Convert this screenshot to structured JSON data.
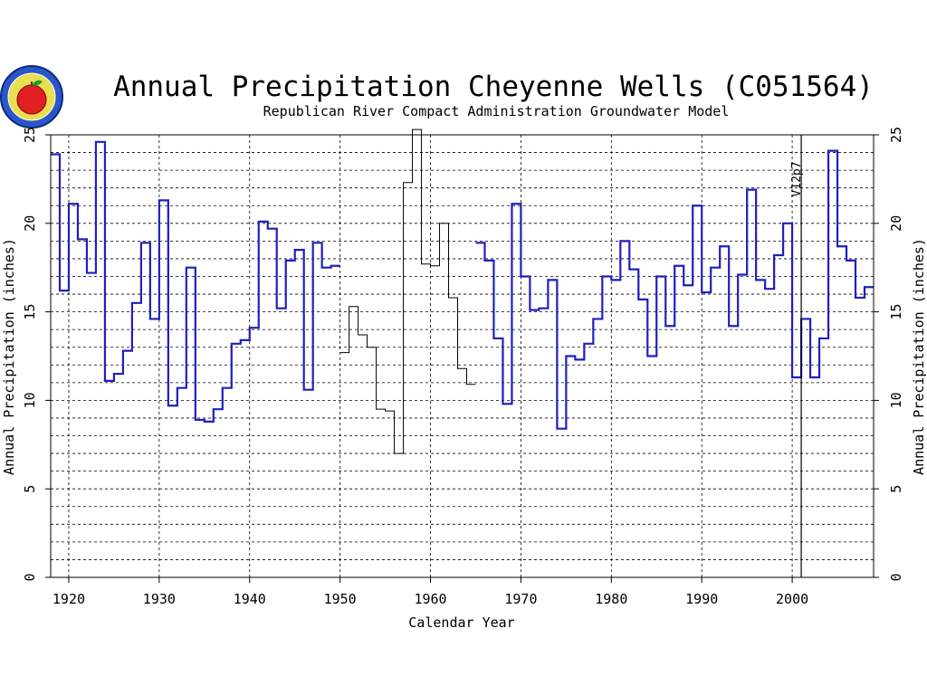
{
  "chart_data": {
    "type": "line",
    "step": true,
    "title": "Annual Precipitation Cheyenne Wells (C051564)",
    "subtitle": "Republican River Compact Administration Groundwater Model",
    "xlabel": "Calendar Year",
    "ylabel": "Annual Precipitation (inches)",
    "xlim": [
      1918,
      2009
    ],
    "ylim": [
      0,
      25
    ],
    "xticks": [
      1920,
      1930,
      1940,
      1950,
      1960,
      1970,
      1980,
      1990,
      2000
    ],
    "xtick_labels": [
      "1920",
      "1930",
      "1940",
      "1950",
      "1960",
      "1970",
      "1980",
      "1990",
      "2000"
    ],
    "yticks": [
      0,
      5,
      10,
      15,
      20,
      25
    ],
    "ytick_labels": [
      "0",
      "5",
      "10",
      "15",
      "20",
      "25"
    ],
    "grid": true,
    "colors": {
      "observed": "#1f1fbf",
      "filled": "#000000"
    },
    "annotation": {
      "text": "V12p7",
      "year": 2001
    },
    "x": [
      1918,
      1919,
      1920,
      1921,
      1922,
      1923,
      1924,
      1925,
      1926,
      1927,
      1928,
      1929,
      1930,
      1931,
      1932,
      1933,
      1934,
      1935,
      1936,
      1937,
      1938,
      1939,
      1940,
      1941,
      1942,
      1943,
      1944,
      1945,
      1946,
      1947,
      1948,
      1949,
      1950,
      1951,
      1952,
      1953,
      1954,
      1955,
      1956,
      1957,
      1958,
      1959,
      1960,
      1961,
      1962,
      1963,
      1964,
      1965,
      1966,
      1967,
      1968,
      1969,
      1970,
      1971,
      1972,
      1973,
      1974,
      1975,
      1976,
      1977,
      1978,
      1979,
      1980,
      1981,
      1982,
      1983,
      1984,
      1985,
      1986,
      1987,
      1988,
      1989,
      1990,
      1991,
      1992,
      1993,
      1994,
      1995,
      1996,
      1997,
      1998,
      1999,
      2000,
      2001,
      2002,
      2003,
      2004,
      2005,
      2006,
      2007,
      2008
    ],
    "values": [
      23.9,
      16.2,
      21.1,
      19.1,
      17.2,
      24.6,
      11.1,
      11.5,
      12.8,
      15.5,
      18.9,
      14.6,
      21.3,
      9.7,
      10.7,
      17.5,
      8.9,
      8.8,
      9.5,
      10.7,
      13.2,
      13.4,
      14.1,
      20.1,
      19.7,
      15.2,
      17.9,
      18.5,
      10.6,
      18.9,
      17.5,
      17.6,
      12.7,
      15.3,
      13.7,
      13.0,
      9.5,
      9.4,
      7.0,
      22.3,
      25.3,
      17.7,
      17.6,
      20.0,
      15.8,
      11.8,
      10.9,
      18.9,
      17.9,
      13.5,
      9.8,
      21.1,
      17.0,
      15.1,
      15.2,
      16.8,
      8.4,
      12.5,
      12.3,
      13.2,
      14.6,
      17.0,
      16.8,
      19.0,
      17.4,
      15.7,
      12.5,
      17.0,
      14.2,
      17.6,
      16.5,
      21.0,
      16.1,
      17.5,
      18.7,
      14.2,
      17.1,
      21.9,
      16.8,
      16.3,
      18.2,
      20.0,
      11.3,
      14.6,
      11.3,
      13.5,
      24.1,
      18.7,
      17.9,
      15.8,
      16.4
    ],
    "segments": [
      {
        "name": "",
        "from": 1918,
        "to": 1950,
        "style": "observed"
      },
      {
        "name": "",
        "from": 1950,
        "to": 1965,
        "style": "filled"
      },
      {
        "name": "",
        "from": 1965,
        "to": 2009,
        "style": "observed"
      }
    ]
  }
}
